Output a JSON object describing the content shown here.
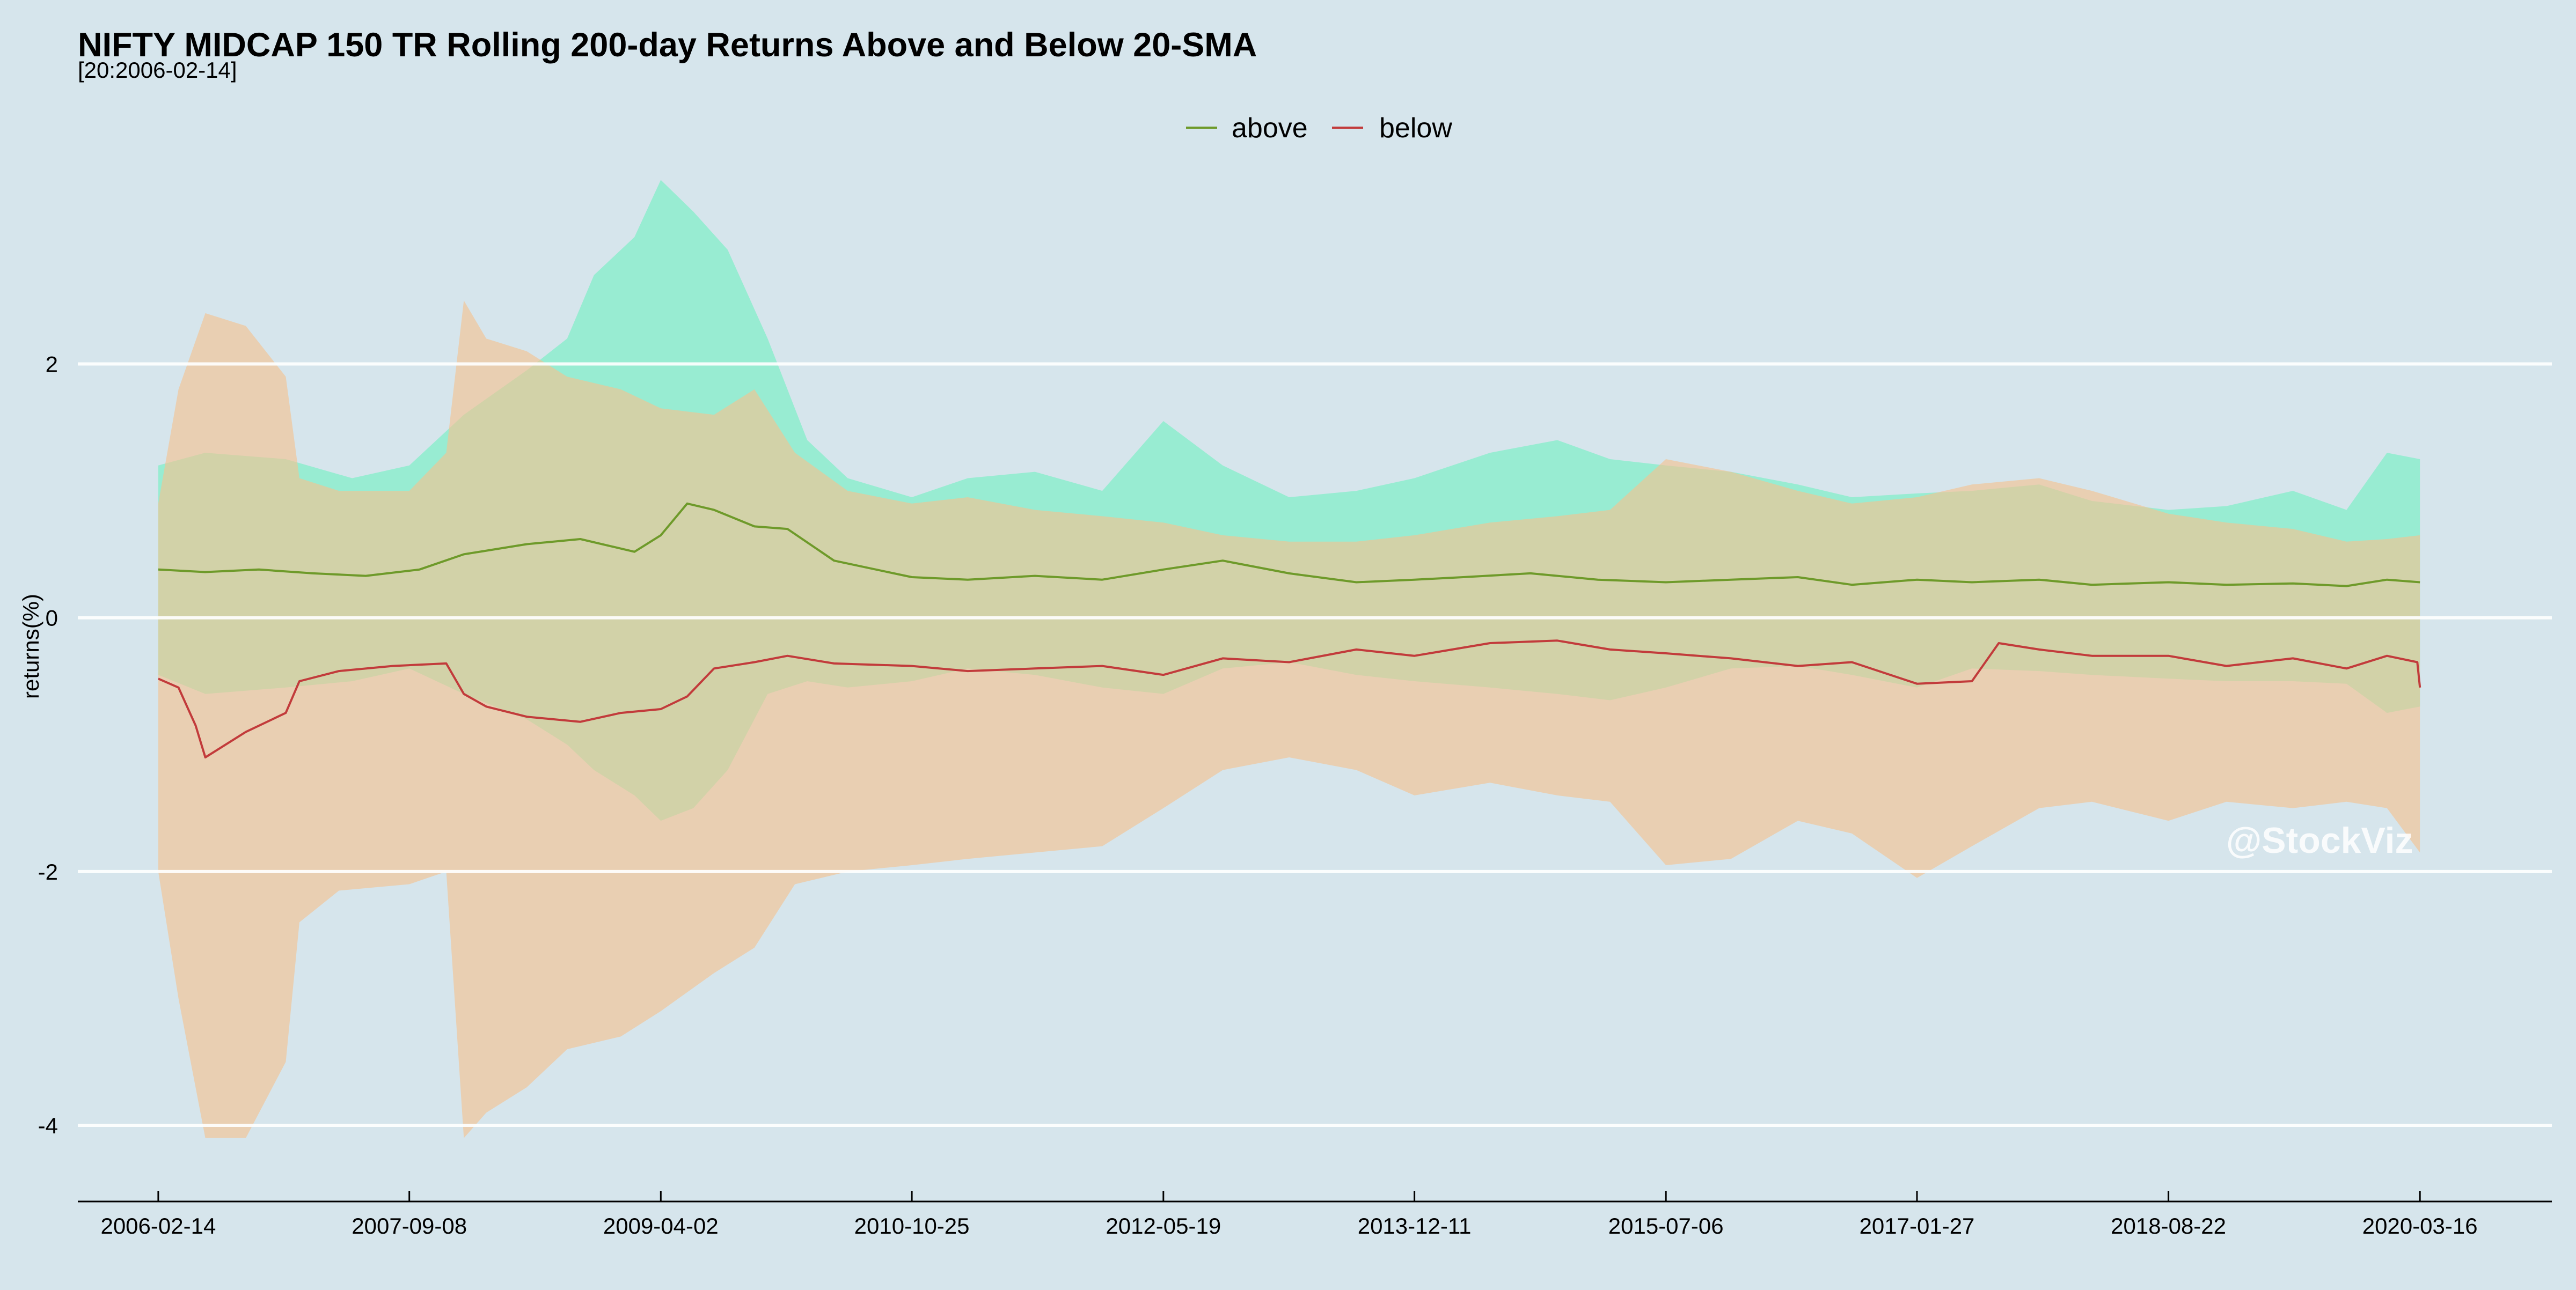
{
  "chart_data": {
    "type": "line",
    "title": "NIFTY MIDCAP 150 TR Rolling 200-day Returns Above and Below 20-SMA",
    "subtitle": "[20:2006-02-14]",
    "xlabel": "",
    "ylabel": "returns(%)",
    "ylim": [
      -4.6,
      3.6
    ],
    "y_ticks": [
      -4,
      -2,
      0,
      2
    ],
    "y_tick_labels": [
      "-4",
      "-2",
      "0",
      "2"
    ],
    "x_ticks": [
      "2006-02-14",
      "2007-09-08",
      "2009-04-02",
      "2010-10-25",
      "2012-05-19",
      "2013-12-11",
      "2015-07-06",
      "2017-01-27",
      "2018-08-22",
      "2020-03-16"
    ],
    "xlim": [
      "2005-08-15",
      "2021-01-10"
    ],
    "grid": "horizontal",
    "legend_position": "top-center",
    "watermark": "@StockViz",
    "colors": {
      "background": "#d6e5ec",
      "above_line": "#6e9a2a",
      "below_line": "#c23b3b",
      "above_band": "#7feec8",
      "below_band": "#f5c28e",
      "grid": "#ffffff",
      "axis": "#000000",
      "watermark": "#ffffff"
    },
    "series": [
      {
        "name": "above",
        "color": "#6e9a2a",
        "x": [
          "2006-02-14",
          "2006-06-01",
          "2006-10-01",
          "2007-02-01",
          "2007-06-01",
          "2007-10-01",
          "2008-01-10",
          "2008-06-01",
          "2008-10-01",
          "2009-02-01",
          "2009-04-02",
          "2009-06-01",
          "2009-08-01",
          "2009-11-01",
          "2010-01-15",
          "2010-05-01",
          "2010-10-25",
          "2011-03-01",
          "2011-08-01",
          "2012-01-01",
          "2012-05-19",
          "2012-10-01",
          "2013-03-01",
          "2013-08-01",
          "2013-12-11",
          "2014-04-01",
          "2014-09-01",
          "2015-02-01",
          "2015-07-06",
          "2015-12-01",
          "2016-05-01",
          "2016-09-01",
          "2017-01-27",
          "2017-06-01",
          "2017-11-01",
          "2018-03-01",
          "2018-08-22",
          "2019-01-01",
          "2019-06-01",
          "2019-10-01",
          "2020-01-01",
          "2020-03-16"
        ],
        "y": [
          0.38,
          0.36,
          0.38,
          0.35,
          0.33,
          0.38,
          0.5,
          0.58,
          0.62,
          0.52,
          0.65,
          0.9,
          0.85,
          0.72,
          0.7,
          0.45,
          0.32,
          0.3,
          0.33,
          0.3,
          0.38,
          0.45,
          0.35,
          0.28,
          0.3,
          0.32,
          0.35,
          0.3,
          0.28,
          0.3,
          0.32,
          0.26,
          0.3,
          0.28,
          0.3,
          0.26,
          0.28,
          0.26,
          0.27,
          0.25,
          0.3,
          0.28
        ]
      },
      {
        "name": "below",
        "color": "#c23b3b",
        "x": [
          "2006-02-14",
          "2006-04-01",
          "2006-05-10",
          "2006-06-01",
          "2006-09-01",
          "2006-12-01",
          "2007-01-01",
          "2007-04-01",
          "2007-08-01",
          "2007-12-01",
          "2008-01-10",
          "2008-03-01",
          "2008-06-01",
          "2008-10-01",
          "2009-01-01",
          "2009-04-02",
          "2009-06-01",
          "2009-08-01",
          "2009-11-01",
          "2010-01-15",
          "2010-05-01",
          "2010-10-25",
          "2011-03-01",
          "2011-08-01",
          "2012-01-01",
          "2012-05-19",
          "2012-10-01",
          "2013-03-01",
          "2013-08-01",
          "2013-12-11",
          "2014-06-01",
          "2014-11-01",
          "2015-03-01",
          "2015-07-06",
          "2015-12-01",
          "2016-05-01",
          "2016-09-01",
          "2017-01-27",
          "2017-06-01",
          "2017-08-01",
          "2017-11-01",
          "2018-03-01",
          "2018-08-22",
          "2019-01-01",
          "2019-06-01",
          "2019-10-01",
          "2020-01-01",
          "2020-03-10",
          "2020-03-16"
        ],
        "y": [
          -0.48,
          -0.55,
          -0.85,
          -1.1,
          -0.9,
          -0.75,
          -0.5,
          -0.42,
          -0.38,
          -0.36,
          -0.6,
          -0.7,
          -0.78,
          -0.82,
          -0.75,
          -0.72,
          -0.62,
          -0.4,
          -0.35,
          -0.3,
          -0.36,
          -0.38,
          -0.42,
          -0.4,
          -0.38,
          -0.45,
          -0.32,
          -0.35,
          -0.25,
          -0.3,
          -0.2,
          -0.18,
          -0.25,
          -0.28,
          -0.32,
          -0.38,
          -0.35,
          -0.52,
          -0.5,
          -0.2,
          -0.25,
          -0.3,
          -0.3,
          -0.38,
          -0.32,
          -0.4,
          -0.3,
          -0.35,
          -0.55
        ]
      }
    ],
    "bands": [
      {
        "series": "above",
        "color": "#7feec8",
        "x": [
          "2006-02-14",
          "2006-06-01",
          "2006-12-01",
          "2007-05-01",
          "2007-09-08",
          "2008-01-10",
          "2008-06-01",
          "2008-09-01",
          "2008-11-01",
          "2009-02-01",
          "2009-04-02",
          "2009-06-15",
          "2009-09-01",
          "2009-12-01",
          "2010-03-01",
          "2010-06-01",
          "2010-10-25",
          "2011-03-01",
          "2011-08-01",
          "2012-01-01",
          "2012-05-19",
          "2012-10-01",
          "2013-03-01",
          "2013-08-01",
          "2013-12-11",
          "2014-06-01",
          "2014-11-01",
          "2015-03-01",
          "2015-07-06",
          "2015-12-01",
          "2016-05-01",
          "2016-09-01",
          "2017-01-27",
          "2017-06-01",
          "2017-11-01",
          "2018-03-01",
          "2018-08-22",
          "2019-01-01",
          "2019-06-01",
          "2019-10-01",
          "2020-01-01",
          "2020-03-16"
        ],
        "low": [
          -0.45,
          -0.6,
          -0.55,
          -0.5,
          -0.4,
          -0.6,
          -0.8,
          -1.0,
          -1.2,
          -1.4,
          -1.6,
          -1.5,
          -1.2,
          -0.6,
          -0.5,
          -0.55,
          -0.5,
          -0.4,
          -0.45,
          -0.55,
          -0.6,
          -0.4,
          -0.35,
          -0.45,
          -0.5,
          -0.55,
          -0.6,
          -0.65,
          -0.55,
          -0.4,
          -0.38,
          -0.45,
          -0.55,
          -0.4,
          -0.42,
          -0.45,
          -0.48,
          -0.5,
          -0.5,
          -0.52,
          -0.75,
          -0.7
        ],
        "high": [
          1.2,
          1.3,
          1.25,
          1.1,
          1.2,
          1.6,
          1.95,
          2.2,
          2.7,
          3.0,
          3.45,
          3.2,
          2.9,
          2.2,
          1.4,
          1.1,
          0.95,
          1.1,
          1.15,
          1.0,
          1.55,
          1.2,
          0.95,
          1.0,
          1.1,
          1.3,
          1.4,
          1.25,
          1.2,
          1.15,
          1.05,
          0.95,
          0.98,
          1.0,
          1.05,
          0.92,
          0.85,
          0.88,
          1.0,
          0.85,
          1.3,
          1.25
        ]
      },
      {
        "series": "below",
        "color": "#f5c28e",
        "x": [
          "2006-02-14",
          "2006-04-01",
          "2006-06-01",
          "2006-09-01",
          "2006-12-01",
          "2007-01-01",
          "2007-04-01",
          "2007-09-08",
          "2007-12-01",
          "2008-01-10",
          "2008-03-01",
          "2008-06-01",
          "2008-09-01",
          "2009-01-01",
          "2009-04-02",
          "2009-08-01",
          "2009-11-01",
          "2010-02-01",
          "2010-06-01",
          "2010-10-25",
          "2011-03-01",
          "2011-08-01",
          "2012-01-01",
          "2012-05-19",
          "2012-10-01",
          "2013-03-01",
          "2013-08-01",
          "2013-12-11",
          "2014-06-01",
          "2014-11-01",
          "2015-03-01",
          "2015-07-06",
          "2015-12-01",
          "2016-05-01",
          "2016-09-01",
          "2017-01-27",
          "2017-06-01",
          "2017-11-01",
          "2018-03-01",
          "2018-08-22",
          "2019-01-01",
          "2019-06-01",
          "2019-10-01",
          "2020-01-01",
          "2020-03-16"
        ],
        "low": [
          -2.0,
          -3.0,
          -4.1,
          -4.1,
          -3.5,
          -2.4,
          -2.15,
          -2.1,
          -2.0,
          -4.1,
          -3.9,
          -3.7,
          -3.4,
          -3.3,
          -3.1,
          -2.8,
          -2.6,
          -2.1,
          -2.0,
          -1.95,
          -1.9,
          -1.85,
          -1.8,
          -1.5,
          -1.2,
          -1.1,
          -1.2,
          -1.4,
          -1.3,
          -1.4,
          -1.45,
          -1.95,
          -1.9,
          -1.6,
          -1.7,
          -2.05,
          -1.8,
          -1.5,
          -1.45,
          -1.6,
          -1.45,
          -1.5,
          -1.45,
          -1.5,
          -1.85
        ],
        "high": [
          0.9,
          1.8,
          2.4,
          2.3,
          1.9,
          1.1,
          1.0,
          1.0,
          1.3,
          2.5,
          2.2,
          2.1,
          1.9,
          1.8,
          1.65,
          1.6,
          1.8,
          1.3,
          1.0,
          0.9,
          0.95,
          0.85,
          0.8,
          0.75,
          0.65,
          0.6,
          0.6,
          0.65,
          0.75,
          0.8,
          0.85,
          1.25,
          1.15,
          1.0,
          0.9,
          0.95,
          1.05,
          1.1,
          1.0,
          0.82,
          0.75,
          0.7,
          0.6,
          0.62,
          0.65
        ]
      }
    ]
  }
}
